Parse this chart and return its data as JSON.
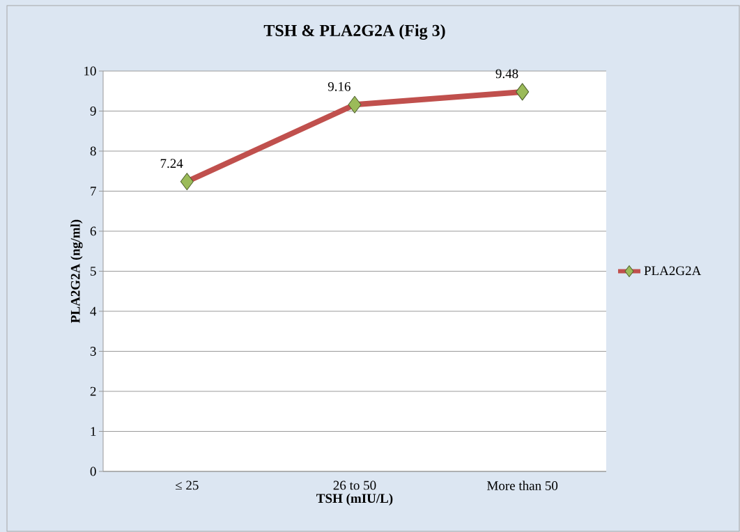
{
  "chart_data": {
    "type": "line",
    "title": "TSH & PLA2G2A (Fig 3)",
    "xlabel": "TSH (mIU/L)",
    "ylabel": "PLA2G2A (ng/ml)",
    "categories": [
      "≤ 25",
      "26 to 50",
      "More than 50"
    ],
    "series": [
      {
        "name": "PLA2G2A",
        "color": "#c0504d",
        "values": [
          7.24,
          9.16,
          9.48
        ]
      }
    ],
    "marker": "diamond",
    "ylim": [
      0,
      10
    ],
    "yticks": [
      0,
      1,
      2,
      3,
      4,
      5,
      6,
      7,
      8,
      9,
      10
    ],
    "grid": "y",
    "legend": "right",
    "data_labels": true
  }
}
